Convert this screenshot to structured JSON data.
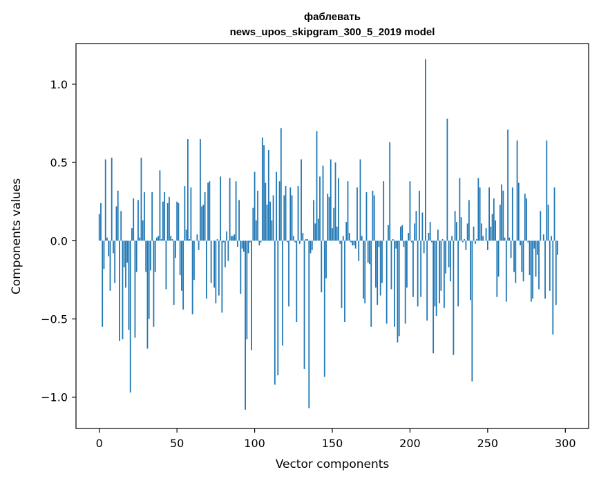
{
  "chart_data": {
    "type": "bar",
    "title": "фаблевать",
    "subtitle": "news_upos_skipgram_300_5_2019 model",
    "xlabel": "Vector components",
    "ylabel": "Components values",
    "xlim": [
      -15,
      315
    ],
    "ylim": [
      -1.2,
      1.26
    ],
    "xticks": [
      0,
      50,
      100,
      150,
      200,
      250,
      300
    ],
    "xtick_labels": [
      "0",
      "50",
      "100",
      "150",
      "200",
      "250",
      "300"
    ],
    "yticks": [
      1.0,
      0.5,
      0.0,
      -0.5,
      -1.0
    ],
    "ytick_labels": [
      "1.0",
      "0.5",
      "0.0",
      "−0.5",
      "−1.0"
    ],
    "grid": false,
    "bar_color": "#1f77b4",
    "values": [
      0.17,
      0.24,
      -0.55,
      -0.18,
      0.52,
      0.02,
      -0.1,
      -0.32,
      0.53,
      -0.08,
      -0.27,
      0.22,
      0.32,
      -0.64,
      0.19,
      -0.63,
      -0.17,
      -0.3,
      -0.14,
      -0.57,
      -0.97,
      0.08,
      0.27,
      -0.62,
      -0.2,
      0.26,
      0.02,
      0.53,
      0.13,
      0.31,
      -0.2,
      -0.69,
      -0.5,
      -0.19,
      0.31,
      -0.55,
      -0.2,
      0.02,
      0.03,
      0.45,
      0.01,
      0.25,
      0.31,
      -0.31,
      0.24,
      0.28,
      0.03,
      0.01,
      -0.41,
      -0.11,
      0.25,
      0.24,
      -0.22,
      -0.32,
      -0.44,
      0.35,
      0.07,
      0.65,
      0.01,
      0.34,
      -0.47,
      -0.25,
      0.0,
      0.04,
      -0.06,
      0.65,
      0.22,
      0.23,
      0.31,
      -0.37,
      0.37,
      0.38,
      -0.27,
      0.0,
      -0.3,
      -0.4,
      0.01,
      -0.35,
      0.41,
      -0.46,
      -0.01,
      -0.17,
      0.06,
      -0.13,
      0.4,
      0.03,
      0.03,
      0.04,
      0.38,
      -0.04,
      0.26,
      -0.34,
      -0.05,
      -0.07,
      -1.08,
      -0.63,
      -0.08,
      -0.01,
      -0.7,
      0.21,
      0.44,
      0.13,
      0.32,
      -0.03,
      -0.01,
      0.66,
      0.61,
      0.37,
      0.23,
      0.58,
      0.25,
      0.13,
      0.29,
      -0.92,
      0.44,
      -0.86,
      0.38,
      0.72,
      -0.67,
      0.29,
      0.35,
      -0.01,
      -0.42,
      0.34,
      0.29,
      0.03,
      -0.01,
      -0.52,
      0.35,
      -0.02,
      0.52,
      0.05,
      -0.82,
      0.01,
      0.01,
      -1.07,
      -0.08,
      -0.06,
      0.26,
      0.11,
      0.7,
      0.14,
      0.41,
      -0.33,
      0.48,
      -0.87,
      -0.24,
      0.3,
      0.28,
      0.52,
      0.08,
      0.21,
      0.5,
      0.09,
      0.4,
      -0.02,
      -0.43,
      0.03,
      -0.52,
      0.12,
      0.38,
      0.05,
      -0.01,
      -0.03,
      -0.03,
      -0.05,
      0.34,
      -0.13,
      0.52,
      0.03,
      -0.37,
      -0.4,
      0.31,
      -0.14,
      -0.15,
      -0.55,
      0.32,
      0.29,
      -0.3,
      -0.41,
      -0.04,
      -0.35,
      -0.27,
      0.38,
      0.0,
      -0.53,
      0.1,
      0.63,
      -0.31,
      0.01,
      -0.55,
      -0.05,
      -0.65,
      -0.61,
      0.09,
      0.1,
      -0.04,
      -0.53,
      -0.3,
      0.05,
      0.38,
      -0.01,
      -0.36,
      0.11,
      0.19,
      -0.42,
      0.32,
      -0.36,
      0.18,
      -0.08,
      1.16,
      -0.51,
      0.05,
      0.12,
      -0.01,
      -0.72,
      -0.42,
      -0.48,
      0.07,
      -0.4,
      -0.32,
      0.01,
      -0.43,
      -0.21,
      0.78,
      -0.17,
      -0.26,
      0.03,
      -0.73,
      0.19,
      0.12,
      -0.42,
      0.4,
      0.15,
      -0.01,
      0.01,
      -0.06,
      0.11,
      0.26,
      -0.38,
      -0.9,
      0.09,
      -0.02,
      0.01,
      0.4,
      0.34,
      0.11,
      0.03,
      0.0,
      0.08,
      -0.06,
      0.34,
      0.09,
      0.17,
      0.27,
      0.13,
      -0.36,
      -0.23,
      0.23,
      0.36,
      0.32,
      0.02,
      -0.39,
      0.71,
      0.02,
      -0.11,
      0.34,
      -0.2,
      -0.27,
      0.64,
      0.37,
      -0.03,
      -0.2,
      -0.26,
      0.3,
      0.27,
      -0.01,
      -0.22,
      -0.39,
      -0.37,
      -0.05,
      -0.23,
      -0.09,
      -0.31,
      0.19,
      0.0,
      0.04,
      -0.37,
      0.64,
      0.23,
      -0.32,
      0.03,
      -0.6,
      0.34,
      -0.41,
      -0.09
    ]
  }
}
